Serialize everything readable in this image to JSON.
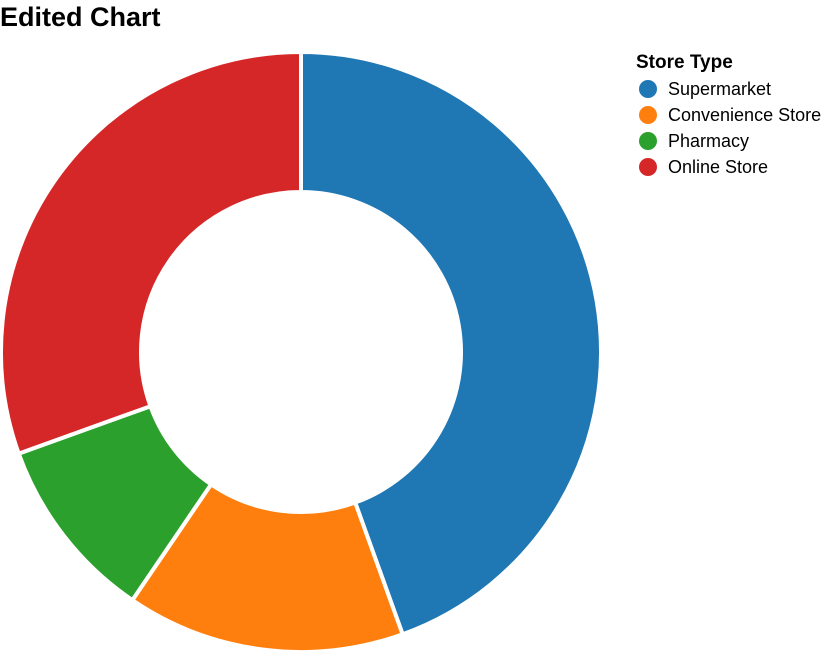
{
  "chart_data": {
    "type": "pie",
    "title": "Edited Chart",
    "donut": true,
    "legend": {
      "title": "Store Type",
      "position": "top-right"
    },
    "slices": [
      {
        "label": "Supermarket",
        "value": 44.5,
        "color": "#1f77b4"
      },
      {
        "label": "Convenience Store",
        "value": 15.0,
        "color": "#ff7f0e"
      },
      {
        "label": "Pharmacy",
        "value": 10.0,
        "color": "#2ca02c"
      },
      {
        "label": "Online Store",
        "value": 30.5,
        "color": "#d62728"
      }
    ]
  }
}
